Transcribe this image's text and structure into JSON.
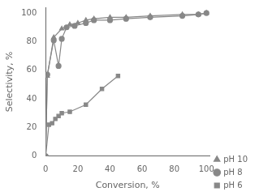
{
  "chart_data": {
    "type": "line",
    "xlabel": "Conversion, %",
    "ylabel": "Selectivity, %",
    "xlim": [
      0,
      102
    ],
    "ylim": [
      0,
      104
    ],
    "xticks": [
      0,
      20,
      40,
      60,
      80,
      100
    ],
    "yticks": [
      0,
      20,
      40,
      60,
      80,
      100
    ],
    "grid": false,
    "legend": "lower right",
    "series": [
      {
        "name": "pH 10",
        "color": "#888888",
        "marker": "triangle",
        "x": [
          0,
          1,
          5,
          10,
          15,
          20,
          25,
          30,
          40,
          50,
          65,
          85,
          95,
          100
        ],
        "values": [
          0,
          56,
          83,
          89,
          92,
          93,
          95,
          96,
          97,
          97,
          98,
          99,
          99,
          100
        ]
      },
      {
        "name": "pH 8",
        "color": "#888888",
        "marker": "circle",
        "x": [
          0,
          1,
          5,
          8,
          10,
          13,
          18,
          25,
          30,
          40,
          50,
          65,
          85,
          95,
          100
        ],
        "values": [
          0,
          57,
          81,
          63,
          82,
          90,
          91,
          93,
          95,
          95,
          96,
          97,
          98,
          99,
          100
        ]
      },
      {
        "name": "pH 6",
        "color": "#888888",
        "marker": "square",
        "x": [
          0,
          2,
          4,
          6,
          8,
          10,
          15,
          25,
          35,
          45
        ],
        "values": [
          0,
          22,
          23,
          26,
          28,
          30,
          31,
          36,
          47,
          56
        ]
      }
    ]
  }
}
